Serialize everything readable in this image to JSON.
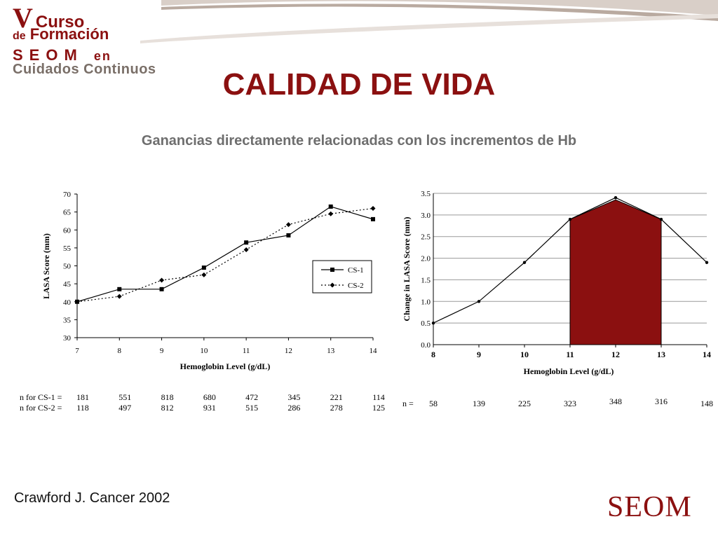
{
  "header": {
    "logo": {
      "line1_v": "V",
      "line1_curso": "Curso",
      "line2_de": "de",
      "line2_formacion": "Formación",
      "line3_seom": "SEOM",
      "line3_en": "en",
      "line4": "Cuidados Continuos"
    },
    "title": "CALIDAD DE VIDA",
    "subtitle": "Ganancias directamente relacionadas con los incrementos de Hb"
  },
  "footer": {
    "citation": "Crawford J. Cancer 2002",
    "brand": "SEOM"
  },
  "colors": {
    "title": "#8b1010",
    "bar_fill": "#8b1010",
    "subtitle": "#6e6e6e"
  },
  "chart_data": [
    {
      "type": "line",
      "xlabel": "Hemoglobin Level (g/dL)",
      "ylabel": "LASA Score (mm)",
      "x": [
        7,
        8,
        9,
        10,
        11,
        12,
        13,
        14
      ],
      "xlim": [
        7,
        14
      ],
      "ylim": [
        30,
        70
      ],
      "yticks": [
        30,
        35,
        40,
        45,
        50,
        55,
        60,
        65,
        70
      ],
      "grid": false,
      "legend": "right",
      "series": [
        {
          "name": "CS-1",
          "marker": "square",
          "style": "solid",
          "values": [
            40,
            43.5,
            43.5,
            49.5,
            56.5,
            58.5,
            66.5,
            63
          ]
        },
        {
          "name": "CS-2",
          "marker": "diamond",
          "style": "dotted",
          "values": [
            40,
            41.5,
            46,
            47.5,
            54.5,
            61.5,
            64.5,
            66
          ]
        }
      ],
      "counts": [
        {
          "label": "n for CS-1  =",
          "values": [
            "181",
            "551",
            "818",
            "680",
            "472",
            "345",
            "221",
            "114"
          ]
        },
        {
          "label": "n for CS-2  =",
          "values": [
            "118",
            "497",
            "812",
            "931",
            "515",
            "286",
            "278",
            "125"
          ]
        }
      ]
    },
    {
      "type": "line",
      "xlabel": "Hemoglobin Level (g/dL)",
      "ylabel": "Change in LASA Score (mm)",
      "x": [
        8,
        9,
        10,
        11,
        12,
        13,
        14
      ],
      "xlim": [
        8,
        14
      ],
      "ylim": [
        0,
        3.5
      ],
      "yticks": [
        "0.0",
        "0.5",
        "1.0",
        "1.5",
        "2.0",
        "2.5",
        "3.0",
        "3.5"
      ],
      "grid": true,
      "series": [
        {
          "values": [
            0.5,
            1.0,
            1.9,
            2.9,
            3.4,
            2.9,
            1.9
          ]
        }
      ],
      "highlight": {
        "from": 11,
        "to": 13,
        "color": "#8b1010"
      },
      "counts": [
        {
          "label": "n =",
          "values": [
            "58",
            "139",
            "225",
            "323",
            "348",
            "316",
            "148"
          ]
        }
      ]
    }
  ]
}
